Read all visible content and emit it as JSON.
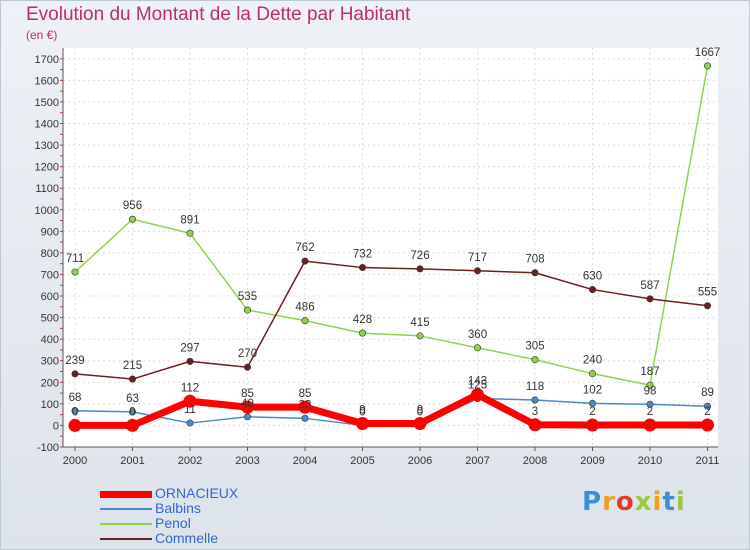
{
  "chart_data": {
    "type": "line",
    "title": "Evolution du Montant de la Dette par Habitant",
    "subtitle": "(en €)",
    "categories": [
      "2000",
      "2001",
      "2002",
      "2003",
      "2004",
      "2005",
      "2006",
      "2007",
      "2008",
      "2009",
      "2010",
      "2011"
    ],
    "yticks": [
      -100,
      0,
      100,
      200,
      300,
      400,
      500,
      600,
      700,
      800,
      900,
      1000,
      1100,
      1200,
      1300,
      1400,
      1500,
      1600,
      1700
    ],
    "ylim": [
      -100,
      1750
    ],
    "grid": true,
    "legend_position": "bottom-left",
    "series": [
      {
        "name": "ORNACIEUX",
        "color": "#ff0000",
        "values": [
          0,
          0,
          112,
          85,
          85,
          9,
          9,
          143,
          3,
          2,
          2,
          2
        ]
      },
      {
        "name": "Balbins",
        "color": "#4a8ac9",
        "values": [
          68,
          63,
          11,
          40,
          33,
          0,
          0,
          125,
          118,
          102,
          98,
          89
        ]
      },
      {
        "name": "Penol",
        "color": "#8ed44a",
        "values": [
          711,
          956,
          891,
          535,
          486,
          428,
          415,
          360,
          305,
          240,
          187,
          1667
        ]
      },
      {
        "name": "Commelle",
        "color": "#6b1f1f",
        "values": [
          239,
          215,
          297,
          270,
          762,
          732,
          726,
          717,
          708,
          630,
          587,
          555
        ]
      }
    ]
  },
  "brand": "Proxiti"
}
